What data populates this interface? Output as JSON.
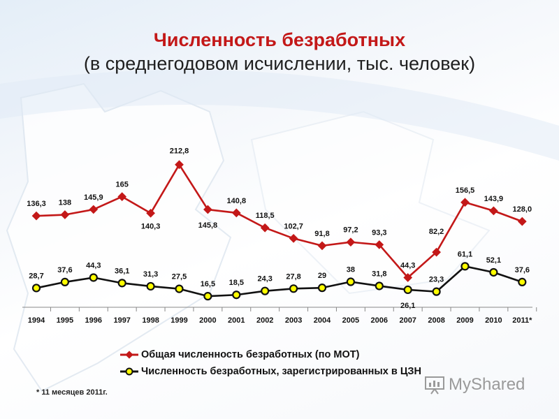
{
  "title": "Численность безработных",
  "subtitle": "(в среднегодовом исчислении, тыс. человек)",
  "footnote": "* 11 месяцев 2011г.",
  "watermark": "MyShared",
  "colors": {
    "series1": "#c31818",
    "series2": "#111111",
    "marker2_fill": "#ffff00",
    "title": "#c31818"
  },
  "chart_data": {
    "type": "line",
    "categories": [
      "1994",
      "1995",
      "1996",
      "1997",
      "1998",
      "1999",
      "2000",
      "2001",
      "2002",
      "2003",
      "2004",
      "2005",
      "2006",
      "2007",
      "2008",
      "2009",
      "2010",
      "2011*"
    ],
    "series": [
      {
        "name": "Общая численность безработных (по МОТ)",
        "values": [
          136.3,
          138,
          145.9,
          165,
          140.3,
          212.8,
          145.8,
          140.8,
          118.5,
          102.7,
          91.8,
          97.2,
          93.3,
          44.3,
          82.2,
          156.5,
          143.9,
          128.0
        ],
        "labels": [
          "136,3",
          "138",
          "145,9",
          "165",
          "140,3",
          "212,8",
          "145,8",
          "140,8",
          "118,5",
          "102,7",
          "91,8",
          "97,2",
          "93,3",
          "44,3",
          "82,2",
          "156,5",
          "143,9",
          "128,0"
        ],
        "color": "#c31818",
        "marker": "diamond"
      },
      {
        "name": "Численность безработных, зарегистрированных в ЦЗН",
        "values": [
          28.7,
          37.6,
          44.3,
          36.1,
          31.3,
          27.5,
          16.5,
          18.5,
          24.3,
          27.8,
          29,
          38,
          31.8,
          26.1,
          23.3,
          61.1,
          52.1,
          37.6
        ],
        "labels": [
          "28,7",
          "37,6",
          "44,3",
          "36,1",
          "31,3",
          "27,5",
          "16,5",
          "18,5",
          "24,3",
          "27,8",
          "29",
          "38",
          "31,8",
          "26,1",
          "23,3",
          "61,1",
          "52,1",
          "37,6"
        ],
        "color": "#111111",
        "marker": "circle"
      }
    ],
    "legend": "bottom",
    "grid": false,
    "ylim": [
      0,
      230
    ]
  }
}
